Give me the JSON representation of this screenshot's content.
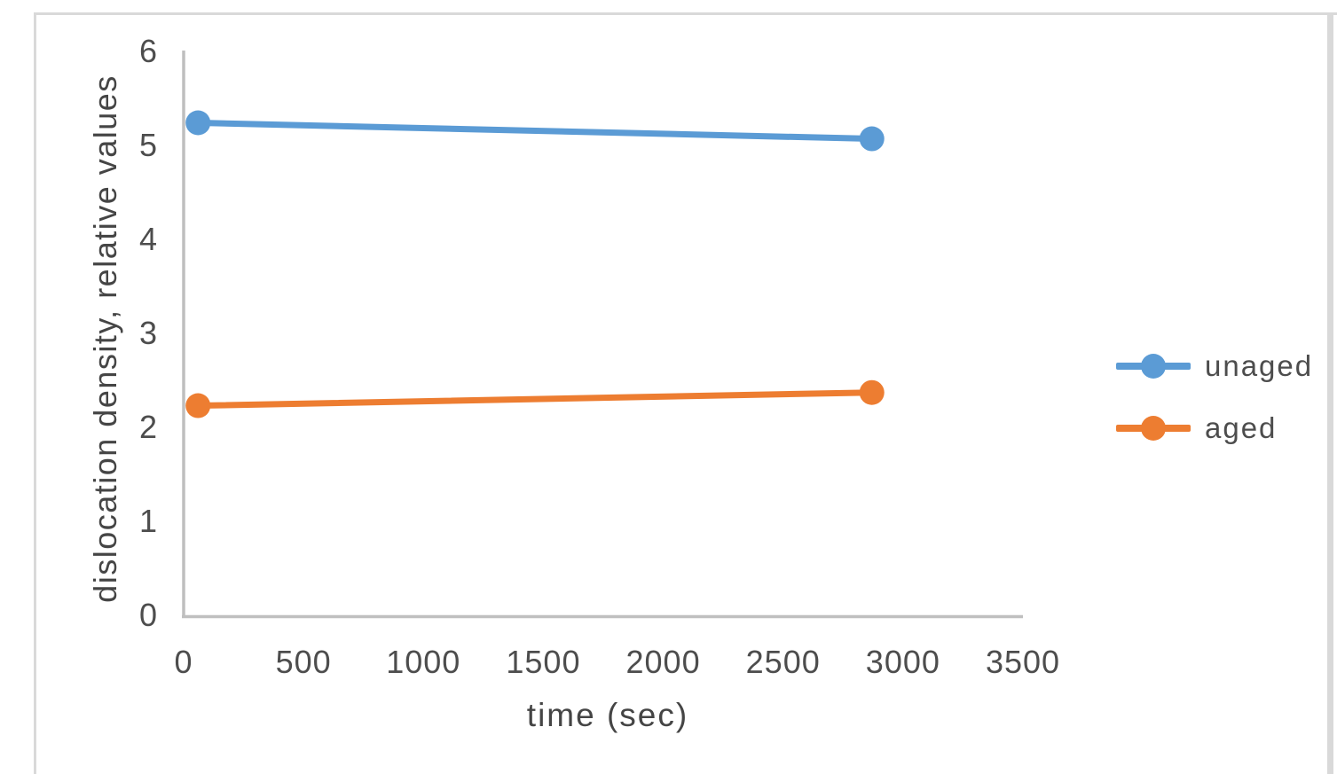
{
  "chart_data": {
    "type": "line",
    "title": "",
    "xlabel": "time (sec)",
    "ylabel": "dislocation density, relative values",
    "xlim": [
      0,
      3500
    ],
    "ylim": [
      0,
      6
    ],
    "x_ticks": [
      0,
      500,
      1000,
      1500,
      2000,
      2500,
      3000,
      3500
    ],
    "y_ticks": [
      0,
      1,
      2,
      3,
      4,
      5,
      6
    ],
    "grid": false,
    "legend_position": "right",
    "marker": "circle",
    "series": [
      {
        "name": "unaged",
        "color": "#5B9BD5",
        "x": [
          60,
          2870
        ],
        "y": [
          5.25,
          5.08
        ]
      },
      {
        "name": "aged",
        "color": "#ED7D31",
        "x": [
          60,
          2870
        ],
        "y": [
          2.24,
          2.38
        ]
      }
    ]
  },
  "styling": {
    "axis_line_color": "#BFBFBF",
    "frame_border_color": "#D9D9D9",
    "text_color": "#4D4D4D",
    "background": "#FFFFFF"
  }
}
